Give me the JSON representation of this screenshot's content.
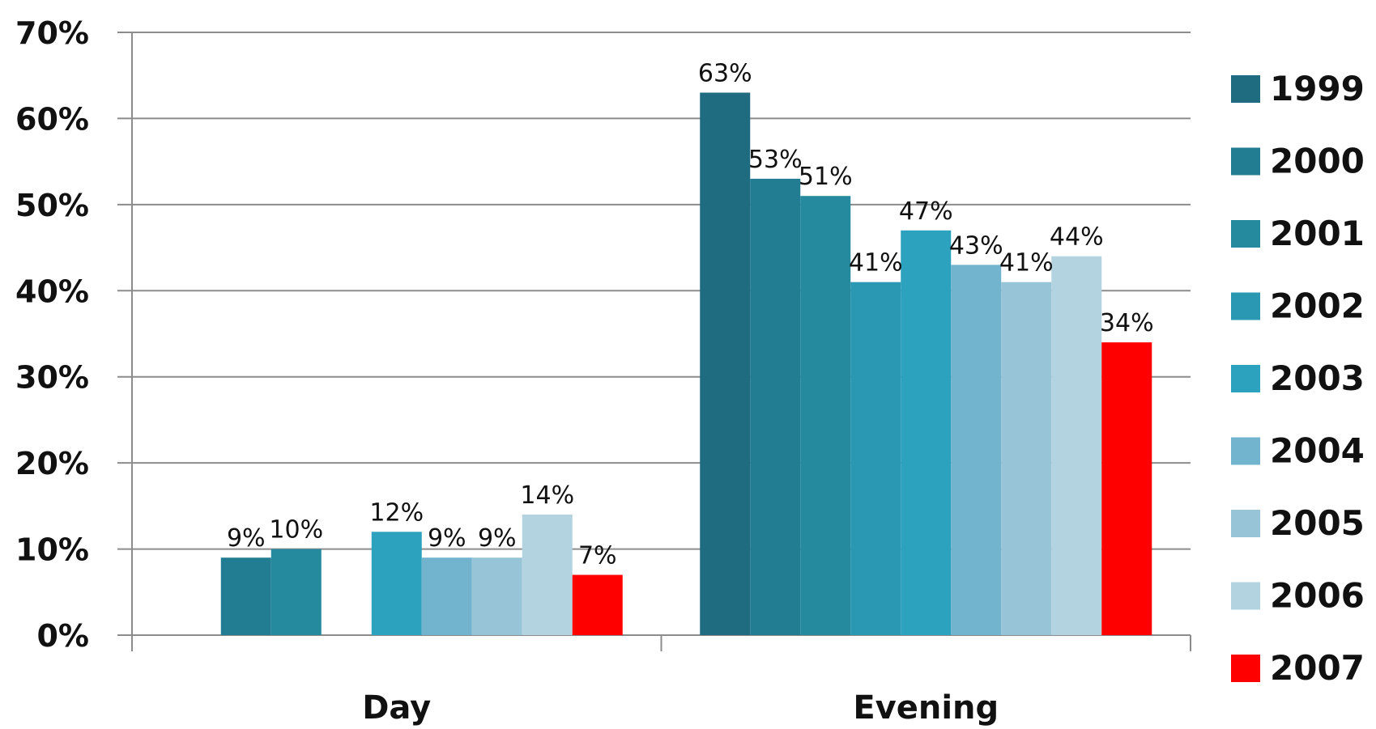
{
  "chart_data": {
    "type": "bar",
    "categories": [
      "Day",
      "Evening"
    ],
    "series": [
      {
        "name": "1999",
        "color": "#1F6B80",
        "values": [
          null,
          63
        ]
      },
      {
        "name": "2000",
        "color": "#237D92",
        "values": [
          9,
          53
        ]
      },
      {
        "name": "2001",
        "color": "#268A9F",
        "values": [
          10,
          51
        ]
      },
      {
        "name": "2002",
        "color": "#2A98B2",
        "values": [
          null,
          41
        ]
      },
      {
        "name": "2003",
        "color": "#2DA2BF",
        "values": [
          12,
          47
        ]
      },
      {
        "name": "2004",
        "color": "#72B3CD",
        "values": [
          9,
          43
        ]
      },
      {
        "name": "2005",
        "color": "#97C4D6",
        "values": [
          9,
          41
        ]
      },
      {
        "name": "2006",
        "color": "#B4D3E0",
        "values": [
          14,
          44
        ]
      },
      {
        "name": "2007",
        "color": "#FF0000",
        "values": [
          7,
          34
        ]
      }
    ],
    "y_ticks": [
      "0%",
      "10%",
      "20%",
      "30%",
      "40%",
      "50%",
      "60%",
      "70%"
    ],
    "ylim": [
      0,
      70
    ],
    "grid": true,
    "legend_position": "right",
    "title": "",
    "xlabel": "",
    "ylabel": ""
  }
}
